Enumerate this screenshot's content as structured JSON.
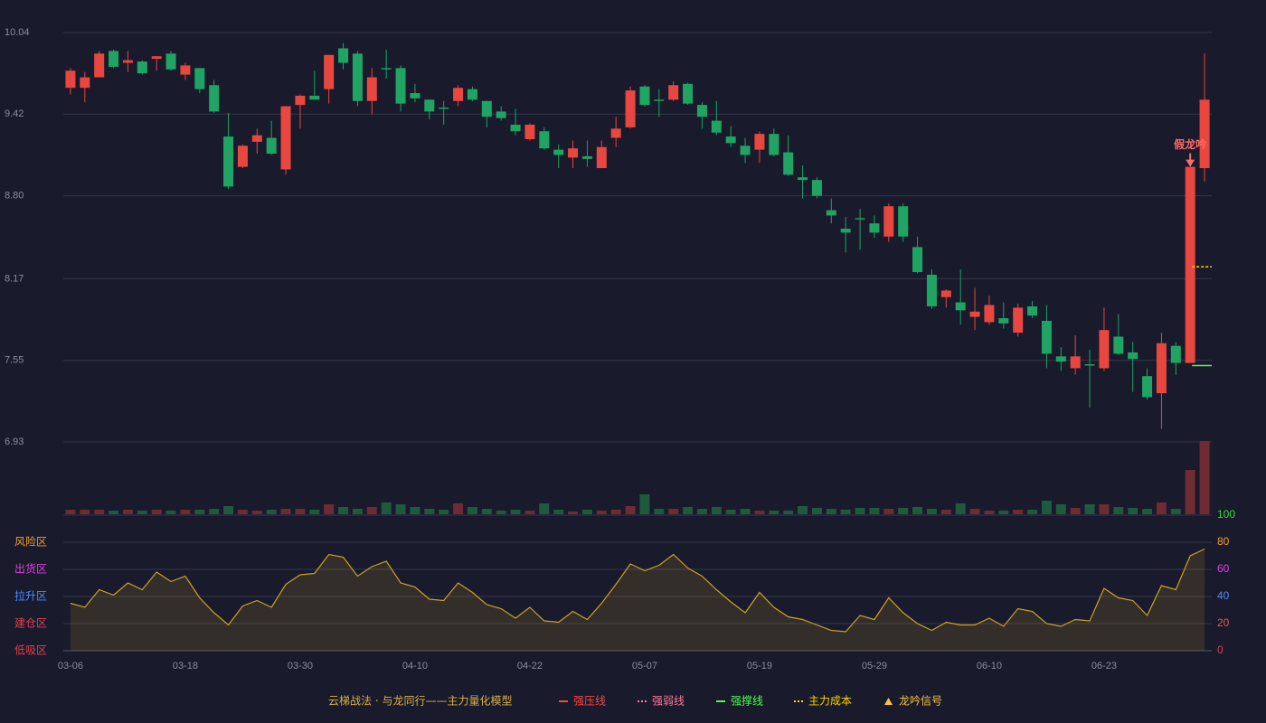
{
  "chart_data": [
    {
      "type": "candlestick",
      "categories": [
        "03-06",
        null,
        null,
        null,
        null,
        null,
        null,
        null,
        "03-18",
        null,
        null,
        null,
        null,
        null,
        null,
        null,
        "03-30",
        null,
        null,
        null,
        null,
        null,
        null,
        null,
        "04-10",
        null,
        null,
        null,
        null,
        null,
        null,
        null,
        "04-22",
        null,
        null,
        null,
        null,
        null,
        null,
        null,
        "05-07",
        null,
        null,
        null,
        null,
        null,
        null,
        null,
        "05-19",
        null,
        null,
        null,
        null,
        null,
        null,
        null,
        "05-29",
        null,
        null,
        null,
        null,
        null,
        null,
        null,
        "06-10",
        null,
        null,
        null,
        null,
        null,
        null,
        null,
        "06-23",
        null,
        null,
        null,
        null,
        null,
        null,
        null
      ],
      "open": [
        9.62,
        9.62,
        9.7,
        9.9,
        9.81,
        9.82,
        9.84,
        9.88,
        9.72,
        9.77,
        9.64,
        9.25,
        9.02,
        9.21,
        9.24,
        9.0,
        9.49,
        9.56,
        9.61,
        9.92,
        9.88,
        9.52,
        9.77,
        9.77,
        9.58,
        9.53,
        9.47,
        9.52,
        9.61,
        9.52,
        9.44,
        9.34,
        9.23,
        9.29,
        9.15,
        9.09,
        9.1,
        9.01,
        9.24,
        9.32,
        9.63,
        9.53,
        9.53,
        9.65,
        9.49,
        9.37,
        9.25,
        9.18,
        9.15,
        9.27,
        9.13,
        8.94,
        8.92,
        8.69,
        8.55,
        8.63,
        8.59,
        8.49,
        8.72,
        8.41,
        8.2,
        8.03,
        7.99,
        7.88,
        7.84,
        7.87,
        7.76,
        7.96,
        7.85,
        7.58,
        7.49,
        7.52,
        7.49,
        7.73,
        7.61,
        7.43,
        7.3,
        7.66,
        7.53,
        9.01
      ],
      "high": [
        9.77,
        9.74,
        9.9,
        9.91,
        9.9,
        9.83,
        9.86,
        9.9,
        9.81,
        9.77,
        9.68,
        9.43,
        9.19,
        9.31,
        9.37,
        9.48,
        9.57,
        9.75,
        9.87,
        9.96,
        9.9,
        9.77,
        9.91,
        9.79,
        9.65,
        9.53,
        9.52,
        9.64,
        9.63,
        9.52,
        9.48,
        9.46,
        9.35,
        9.32,
        9.19,
        9.22,
        9.22,
        9.22,
        9.4,
        9.63,
        9.64,
        9.61,
        9.67,
        9.66,
        9.51,
        9.52,
        9.33,
        9.24,
        9.29,
        9.31,
        9.26,
        9.03,
        8.94,
        8.78,
        8.64,
        8.7,
        8.65,
        8.74,
        8.74,
        8.49,
        8.24,
        8.09,
        8.24,
        8.1,
        8.04,
        7.99,
        7.98,
        8.0,
        7.97,
        7.65,
        7.74,
        7.63,
        7.95,
        7.9,
        7.69,
        7.49,
        7.76,
        7.69,
        9.02,
        9.88
      ],
      "low": [
        9.57,
        9.51,
        9.7,
        9.77,
        9.74,
        9.72,
        9.75,
        9.75,
        9.68,
        9.58,
        9.43,
        8.85,
        9.01,
        9.12,
        9.11,
        8.96,
        9.31,
        9.53,
        9.5,
        9.76,
        9.48,
        9.42,
        9.69,
        9.44,
        9.51,
        9.38,
        9.34,
        9.48,
        9.52,
        9.32,
        9.37,
        9.26,
        9.22,
        9.15,
        9.01,
        9.01,
        9.02,
        9.01,
        9.17,
        9.31,
        9.48,
        9.4,
        9.52,
        9.49,
        9.31,
        9.26,
        9.17,
        9.05,
        9.05,
        9.1,
        8.95,
        8.78,
        8.78,
        8.59,
        8.37,
        8.39,
        8.48,
        8.45,
        8.45,
        8.21,
        7.94,
        7.95,
        7.82,
        7.78,
        7.82,
        7.79,
        7.73,
        7.87,
        7.49,
        7.47,
        7.44,
        7.19,
        7.47,
        7.59,
        7.31,
        7.25,
        7.03,
        7.44,
        7.53,
        8.91
      ],
      "close": [
        9.75,
        9.7,
        9.88,
        9.78,
        9.83,
        9.73,
        9.86,
        9.76,
        9.79,
        9.61,
        9.44,
        8.87,
        9.18,
        9.26,
        9.12,
        9.48,
        9.56,
        9.53,
        9.87,
        9.81,
        9.52,
        9.7,
        9.76,
        9.5,
        9.54,
        9.44,
        9.46,
        9.62,
        9.53,
        9.4,
        9.39,
        9.29,
        9.34,
        9.16,
        9.11,
        9.16,
        9.08,
        9.17,
        9.31,
        9.6,
        9.49,
        9.52,
        9.64,
        9.5,
        9.4,
        9.28,
        9.2,
        9.11,
        9.27,
        9.11,
        8.96,
        8.92,
        8.8,
        8.65,
        8.52,
        8.62,
        8.52,
        8.72,
        8.49,
        8.22,
        7.96,
        8.08,
        7.93,
        7.92,
        7.97,
        7.83,
        7.95,
        7.89,
        7.6,
        7.54,
        7.58,
        7.51,
        7.78,
        7.6,
        7.56,
        7.27,
        7.68,
        7.53,
        9.02,
        9.53
      ],
      "up_color": "#e8473f",
      "down_color": "#1fa463",
      "ylim": [
        6.93,
        10.04
      ],
      "yticks": [
        10.04,
        9.42,
        {
          "value": 8.8,
          "label": "8.80"
        },
        8.17,
        7.55,
        6.93
      ],
      "grid": true,
      "annotations": [
        {
          "text": "假龙吟",
          "x_index": 78,
          "value": 9.02,
          "color": "#ff6b6b"
        }
      ],
      "legend_title": "云梯战法 · 与龙同行——主力量化模型",
      "legend_title_color": "#d9b14a",
      "legend": [
        {
          "name": "强压线",
          "color": "#ff4444",
          "style": "line"
        },
        {
          "name": "强弱线",
          "color": "#ff7a9a",
          "style": "dash"
        },
        {
          "name": "强撑线",
          "color": "#4cff4c",
          "style": "line",
          "value": 7.51
        },
        {
          "name": "主力成本",
          "color": "#ffd400",
          "style": "dash",
          "value": 8.26
        },
        {
          "name": "龙吟信号",
          "color": "#f5c542",
          "style": "triangle"
        }
      ]
    },
    {
      "type": "bar",
      "values": [
        5,
        5,
        5,
        4,
        5,
        4,
        5,
        4,
        5,
        5,
        6,
        9,
        5,
        4,
        5,
        6,
        6,
        5,
        11,
        8,
        6,
        8,
        13,
        11,
        8,
        6,
        5,
        12,
        8,
        6,
        4,
        5,
        4,
        12,
        5,
        3,
        5,
        4,
        5,
        9,
        22,
        6,
        6,
        8,
        6,
        8,
        5,
        6,
        4,
        4,
        4,
        9,
        7,
        6,
        5,
        7,
        7,
        6,
        7,
        8,
        6,
        5,
        12,
        6,
        4,
        4,
        5,
        5,
        15,
        11,
        7,
        11,
        11,
        8,
        7,
        6,
        13,
        6,
        49,
        81
      ],
      "up_color": "#6e2b33",
      "down_color": "#1d5a3e"
    },
    {
      "type": "line",
      "values": [
        35,
        32,
        45,
        41,
        50,
        45,
        58,
        51,
        55,
        39,
        28,
        19,
        33,
        37,
        32,
        49,
        56,
        57,
        71,
        69,
        55,
        62,
        66,
        50,
        47,
        38,
        37,
        50,
        43,
        34,
        31,
        24,
        32,
        22,
        21,
        29,
        23,
        35,
        49,
        64,
        59,
        63,
        71,
        61,
        55,
        45,
        36,
        28,
        43,
        32,
        25,
        23,
        19,
        15,
        14,
        26,
        23,
        39,
        28,
        20,
        15,
        21,
        19,
        19,
        24,
        18,
        31,
        29,
        20,
        18,
        23,
        22,
        46,
        39,
        37,
        26,
        48,
        45,
        70,
        75
      ],
      "color": "#c9a227",
      "ylim": [
        0,
        100
      ],
      "yticks": [
        0,
        20,
        40,
        60,
        80,
        100
      ],
      "ytick_colors": [
        "#e04050",
        "#e05a50",
        "#4a8cff",
        "#e040e0",
        "#f0a030",
        "#3ddc3d"
      ],
      "grid": true,
      "zones": [
        {
          "label": "风险区",
          "value": 80,
          "color": "#f0a030"
        },
        {
          "label": "出货区",
          "value": 60,
          "color": "#e040e0"
        },
        {
          "label": "拉升区",
          "value": 40,
          "color": "#4a8cff"
        },
        {
          "label": "建仓区",
          "value": 20,
          "color": "#e04050"
        },
        {
          "label": "低吸区",
          "value": 0,
          "color": "#e04050"
        }
      ]
    }
  ]
}
